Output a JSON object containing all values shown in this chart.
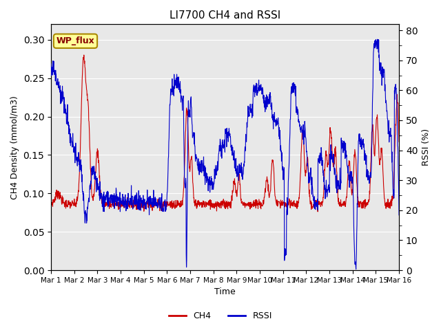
{
  "title": "LI7700 CH4 and RSSI",
  "xlabel": "Time",
  "ylabel_left": "CH4 Density (mmol/m3)",
  "ylabel_right": "RSSI (%)",
  "annotation": "WP_flux",
  "ylim_left": [
    0.0,
    0.32
  ],
  "ylim_right": [
    0,
    82
  ],
  "yticks_left": [
    0.0,
    0.05,
    0.1,
    0.15,
    0.2,
    0.25,
    0.3
  ],
  "yticks_right": [
    0,
    10,
    20,
    30,
    40,
    50,
    60,
    70,
    80
  ],
  "xtick_labels": [
    "Mar 1",
    "Mar 2",
    "Mar 3",
    "Mar 4",
    "Mar 5",
    "Mar 6",
    "Mar 7",
    "Mar 8",
    "Mar 9",
    "Mar 10",
    "Mar 11",
    "Mar 12",
    "Mar 13",
    "Mar 14",
    "Mar 15",
    "Mar 16"
  ],
  "ch4_color": "#cc0000",
  "rssi_color": "#0000cc",
  "bg_color": "#e8e8e8",
  "legend_ch4": "CH4",
  "legend_rssi": "RSSI",
  "grid_color": "#ffffff",
  "annotation_bg": "#ffff99",
  "annotation_border": "#aa8800",
  "annotation_text_color": "#880000"
}
